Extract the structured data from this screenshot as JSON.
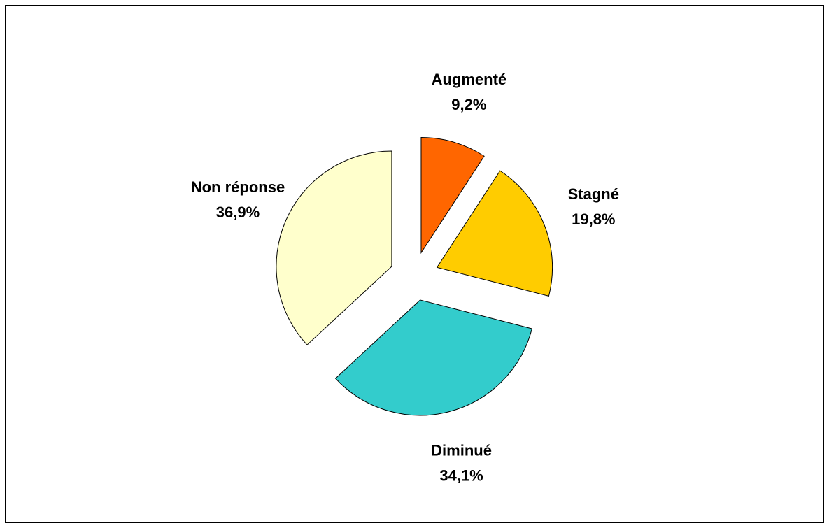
{
  "chart_data": {
    "type": "pie",
    "categories": [
      "Augmenté",
      "Stagné",
      "Diminué",
      "Non réponse"
    ],
    "values": [
      9.2,
      19.8,
      34.1,
      36.9
    ],
    "value_labels": [
      "9,2%",
      "19,8%",
      "34,1%",
      "36,9%"
    ],
    "colors": [
      "#ff6600",
      "#ffcc00",
      "#33cccc",
      "#ffffcc"
    ]
  }
}
